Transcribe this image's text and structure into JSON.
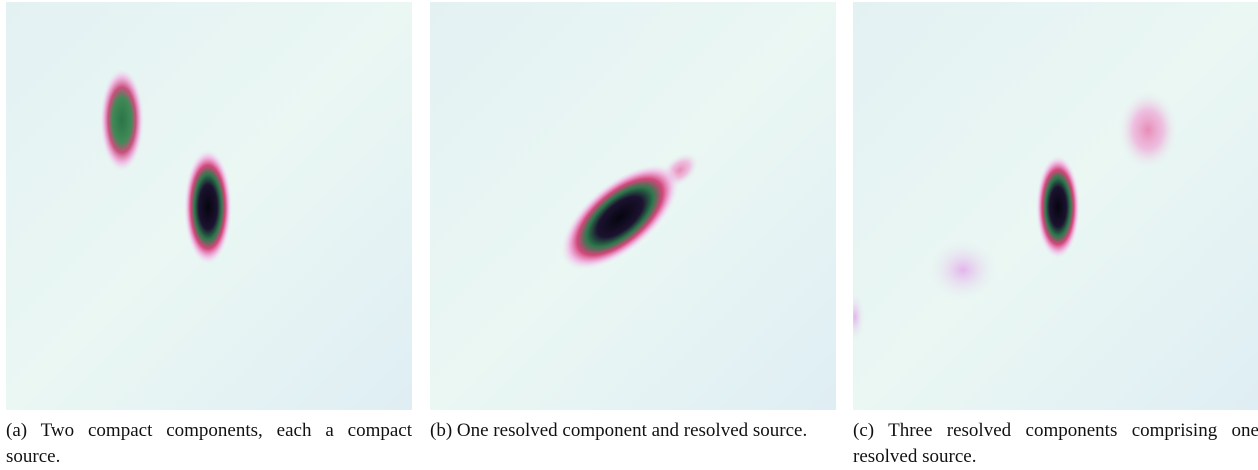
{
  "panels": [
    {
      "caption": "(a) Two compact components, each a compact source."
    },
    {
      "caption": "(b) One resolved component and resolved source."
    },
    {
      "caption": "(c) Three resolved components comprising one resolved source."
    }
  ]
}
